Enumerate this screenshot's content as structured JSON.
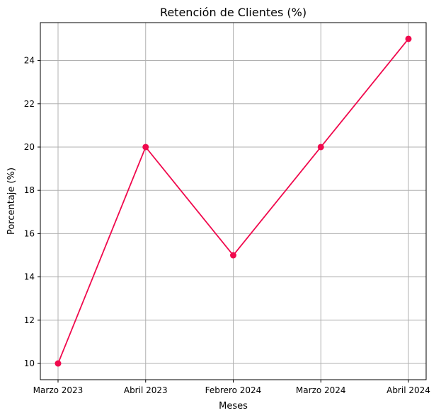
{
  "chart_data": {
    "type": "line",
    "title": "Retención de Clientes (%)",
    "xlabel": "Meses",
    "ylabel": "Porcentaje (%)",
    "categories": [
      "Marzo 2023",
      "Abril 2023",
      "Febrero 2024",
      "Marzo 2024",
      "Abril 2024"
    ],
    "series": [
      {
        "values": [
          10,
          20,
          15,
          20,
          25
        ],
        "color": "#f0094d",
        "marker": "circle"
      }
    ],
    "yticks": [
      10,
      12,
      14,
      16,
      18,
      20,
      22,
      24
    ],
    "ylim": [
      9.25,
      25.75
    ],
    "grid": true,
    "legend": "none"
  }
}
